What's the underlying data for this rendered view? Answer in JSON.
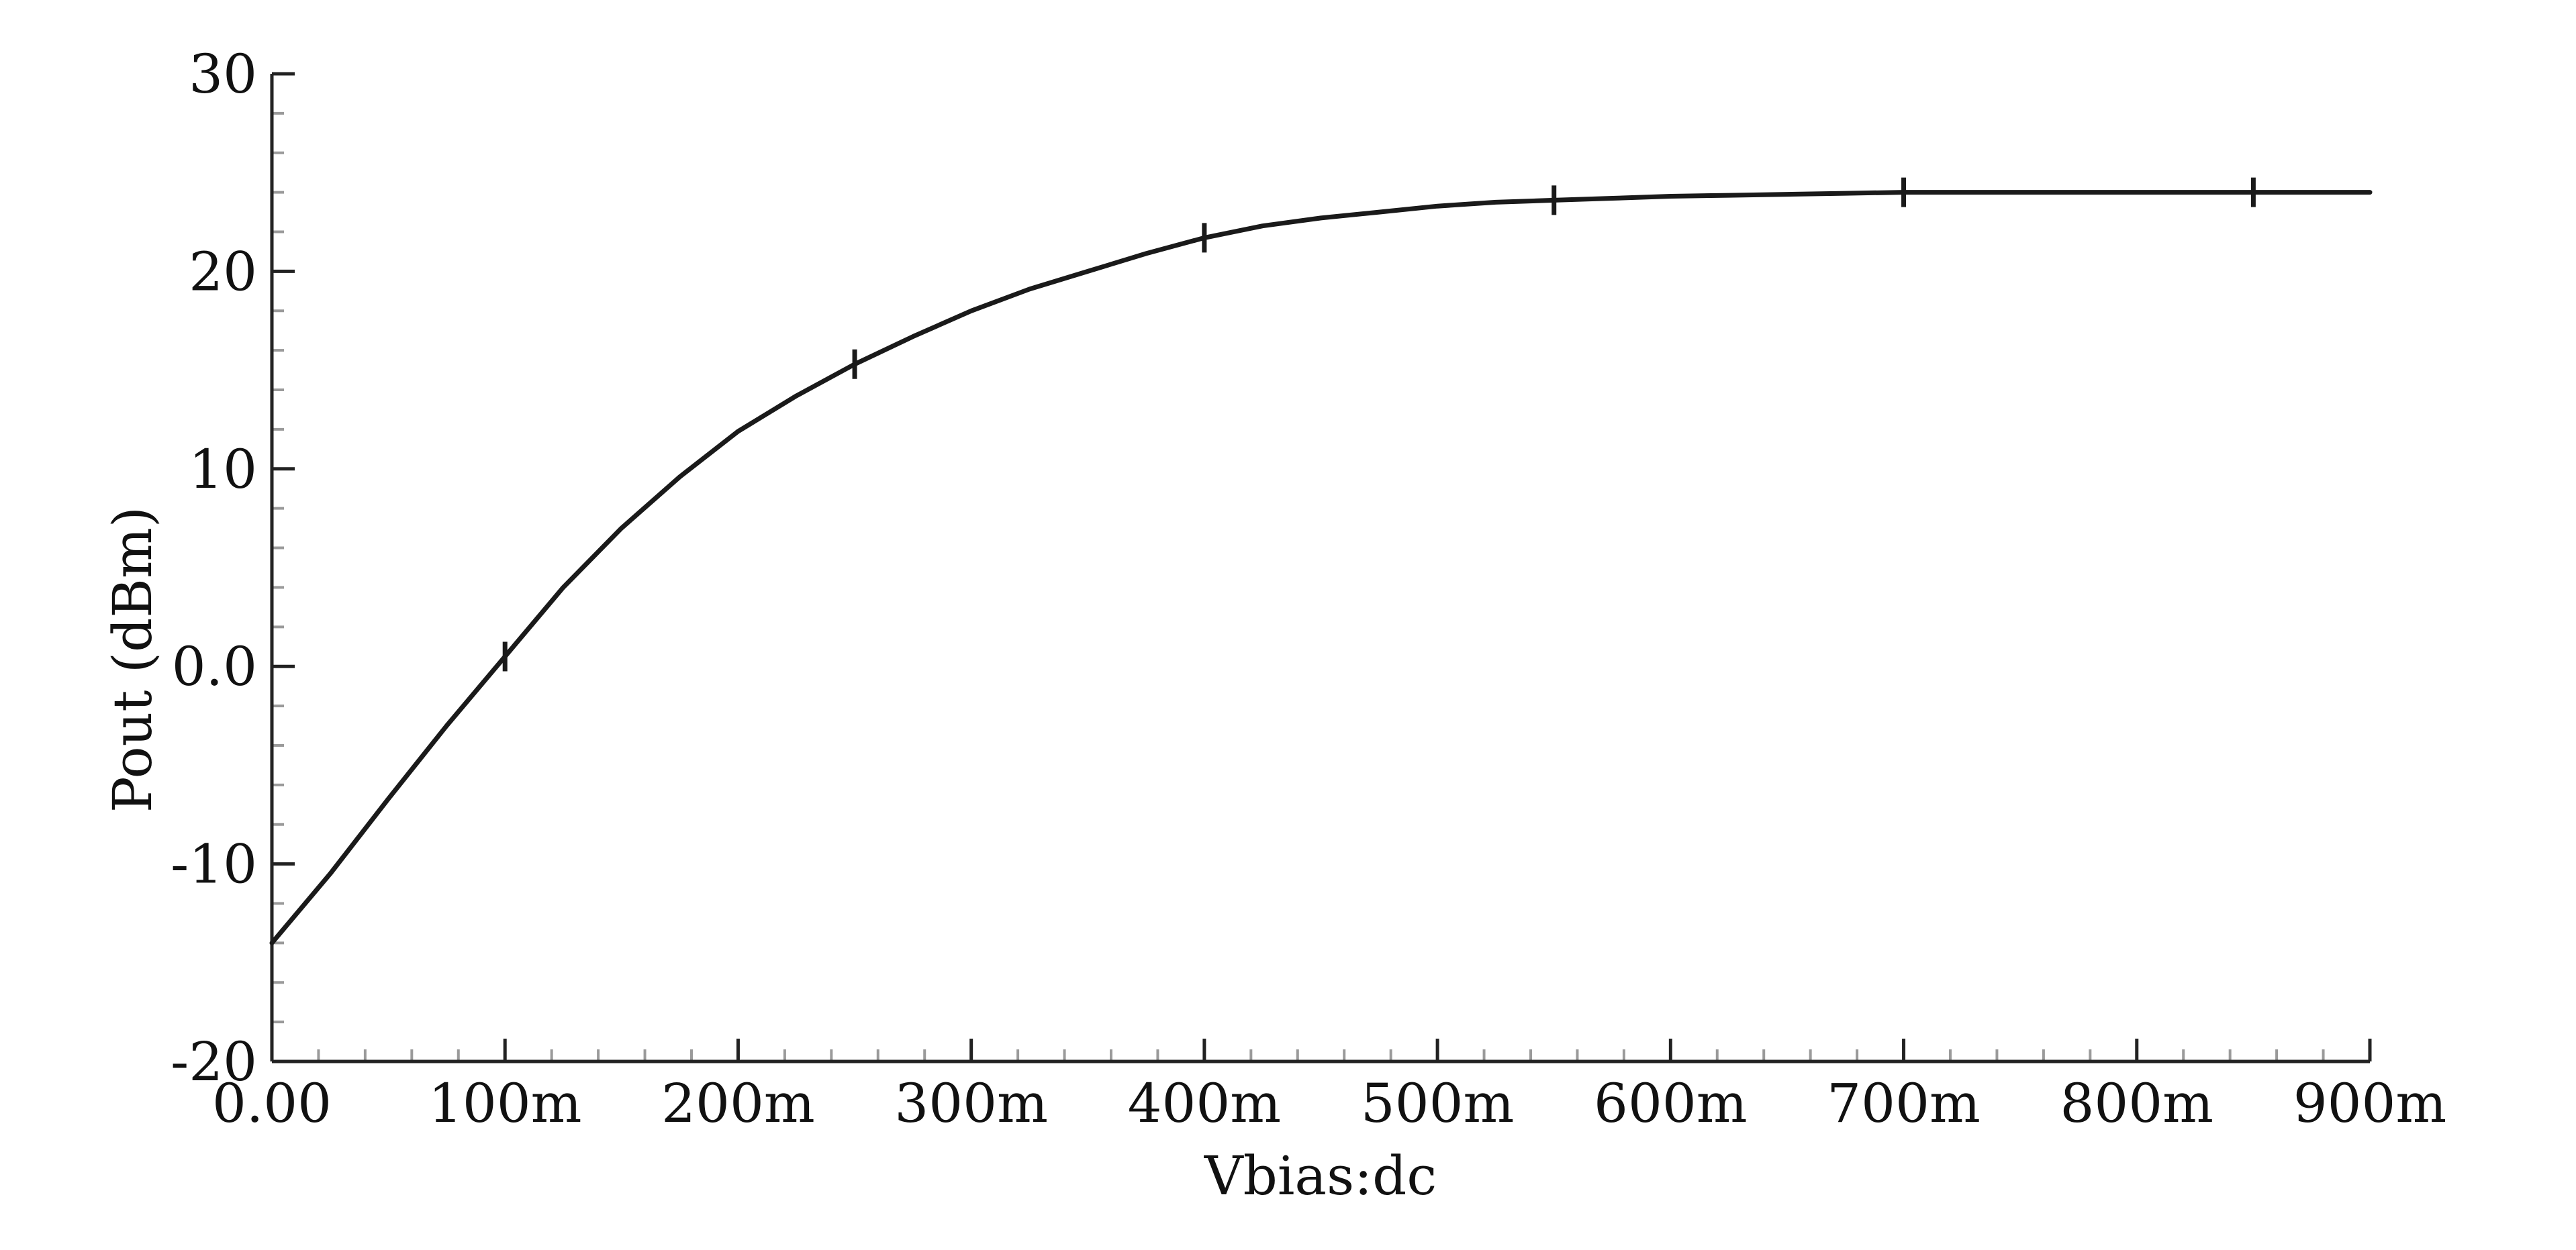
{
  "chart_data": {
    "type": "line",
    "xlabel": "Vbias:dc",
    "ylabel": "Pout (dBm)",
    "xlim": [
      0,
      0.9
    ],
    "ylim": [
      -20,
      30
    ],
    "x_ticks": [
      {
        "value": 0.0,
        "label": "0.00"
      },
      {
        "value": 0.1,
        "label": "100m"
      },
      {
        "value": 0.2,
        "label": "200m"
      },
      {
        "value": 0.3,
        "label": "300m"
      },
      {
        "value": 0.4,
        "label": "400m"
      },
      {
        "value": 0.5,
        "label": "500m"
      },
      {
        "value": 0.6,
        "label": "600m"
      },
      {
        "value": 0.7,
        "label": "700m"
      },
      {
        "value": 0.8,
        "label": "800m"
      },
      {
        "value": 0.9,
        "label": "900m"
      }
    ],
    "y_ticks": [
      {
        "value": 30,
        "label": "30"
      },
      {
        "value": 20,
        "label": "20"
      },
      {
        "value": 10,
        "label": "10"
      },
      {
        "value": 0,
        "label": "0.0"
      },
      {
        "value": -10,
        "label": "-10"
      },
      {
        "value": -20,
        "label": "-20"
      }
    ],
    "grid": false,
    "series": [
      {
        "color": "#1a1a1a",
        "x": [
          0.0,
          0.025,
          0.05,
          0.075,
          0.1,
          0.125,
          0.15,
          0.175,
          0.2,
          0.225,
          0.25,
          0.275,
          0.3,
          0.325,
          0.35,
          0.375,
          0.4,
          0.425,
          0.45,
          0.475,
          0.5,
          0.525,
          0.55,
          0.575,
          0.6,
          0.625,
          0.65,
          0.675,
          0.7,
          0.725,
          0.75,
          0.775,
          0.8,
          0.825,
          0.85,
          0.875,
          0.9
        ],
        "y": [
          -14.0,
          -10.5,
          -6.7,
          -3.0,
          0.5,
          4.0,
          7.0,
          9.6,
          11.9,
          13.7,
          15.3,
          16.7,
          18.0,
          19.1,
          20.0,
          20.9,
          21.7,
          22.3,
          22.7,
          23.0,
          23.3,
          23.5,
          23.6,
          23.7,
          23.8,
          23.85,
          23.9,
          23.95,
          24.0,
          24.0,
          24.0,
          24.0,
          24.0,
          24.0,
          24.0,
          24.0,
          24.0
        ],
        "markers_x": [
          0.1,
          0.25,
          0.4,
          0.55,
          0.7,
          0.85
        ]
      }
    ]
  }
}
